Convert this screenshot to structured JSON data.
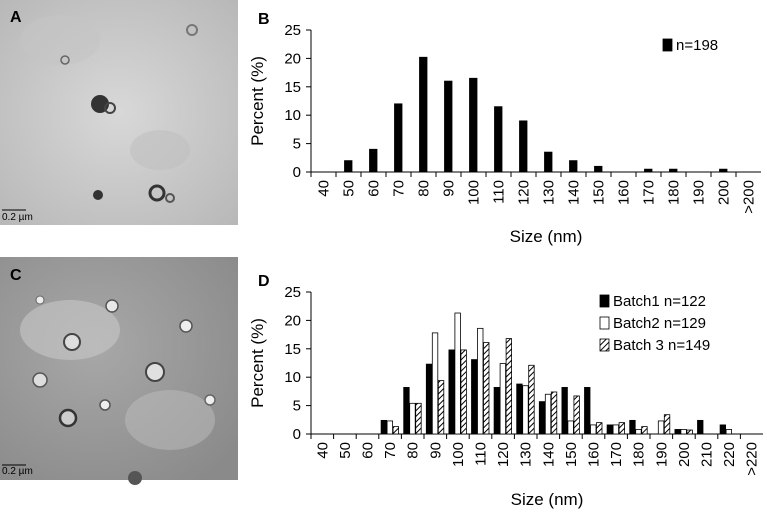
{
  "micrographs": [
    {
      "label": "A",
      "scale": "0.2 µm"
    },
    {
      "label": "C",
      "scale": "0.2 µm"
    }
  ],
  "chart_data": [
    {
      "type": "bar",
      "panel_label": "B",
      "x_label": "Size (nm)",
      "y_label": "Percent (%)",
      "categories": [
        "40",
        "50",
        "60",
        "70",
        "80",
        "90",
        "100",
        "110",
        "120",
        "130",
        "140",
        "150",
        "160",
        "170",
        "180",
        "190",
        "200",
        ">200"
      ],
      "series": [
        {
          "name": "n=198",
          "color": "#000000",
          "values": [
            0,
            2,
            4,
            12,
            20.2,
            16,
            16.5,
            11.5,
            9,
            3.5,
            2,
            1,
            0,
            0.5,
            0.5,
            0,
            0.5,
            0
          ]
        }
      ],
      "ylim": [
        0,
        25
      ],
      "yticks": [
        0,
        5,
        10,
        15,
        20,
        25
      ]
    },
    {
      "type": "bar",
      "panel_label": "D",
      "x_label": "Size (nm)",
      "y_label": "Percent (%)",
      "categories": [
        "40",
        "50",
        "60",
        "70",
        "80",
        "90",
        "100",
        "110",
        "120",
        "130",
        "140",
        "150",
        "160",
        "170",
        "180",
        "190",
        "200",
        "210",
        "220",
        ">220"
      ],
      "series": [
        {
          "name": "Batch1 n=122",
          "color": "#000000",
          "pattern": "solid",
          "values": [
            0,
            0,
            0,
            2.4,
            8.2,
            12.3,
            14.8,
            13.1,
            8.2,
            8.8,
            5.7,
            8.2,
            8.2,
            1.6,
            2.4,
            0,
            0.8,
            2.4,
            1.6,
            0
          ]
        },
        {
          "name": "Batch2 n=129",
          "color": "#ffffff",
          "pattern": "solid",
          "values": [
            0,
            0,
            0,
            2.3,
            5.4,
            17.8,
            21.3,
            18.6,
            12.4,
            8.5,
            7.0,
            2.3,
            1.6,
            1.6,
            0.8,
            2.3,
            0.8,
            0,
            0.8,
            0
          ]
        },
        {
          "name": "Batch 3 n=149",
          "color": "#ffffff",
          "pattern": "diagonal",
          "values": [
            0,
            0,
            0,
            1.3,
            5.4,
            9.4,
            14.8,
            16.1,
            16.8,
            12.1,
            7.4,
            6.7,
            2.0,
            2.0,
            1.3,
            3.4,
            0.7,
            0,
            0,
            0
          ]
        }
      ],
      "ylim": [
        0,
        25
      ],
      "yticks": [
        0,
        5,
        10,
        15,
        20,
        25
      ]
    }
  ]
}
